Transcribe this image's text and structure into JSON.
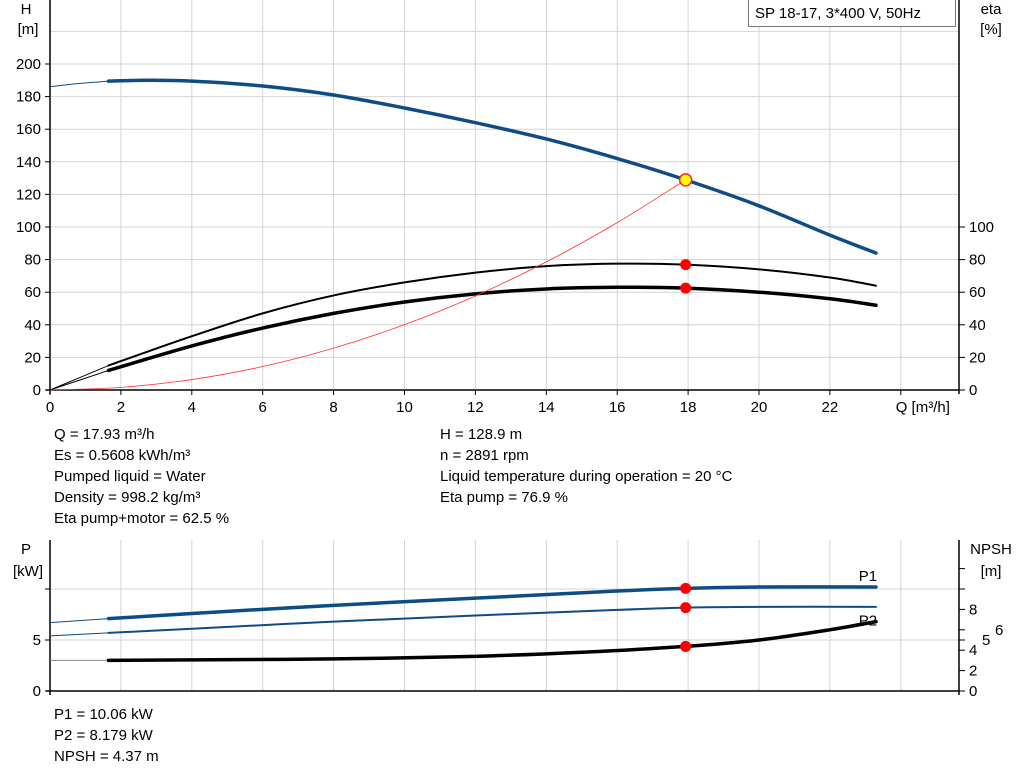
{
  "title_box": "SP 18-17, 3*400 V, 50Hz",
  "colors": {
    "head": "#0e4c86",
    "efficiency": "#000000",
    "system_curve": "#ff3030",
    "duty_point": "#ff0000",
    "duty_point_head_fill": "#ffff00",
    "grid": "#d4d4d4"
  },
  "chart_data": [
    {
      "type": "line",
      "xlabel": "Q [m³/h]",
      "ylabel": "H\n[m]",
      "ylabel_parts": [
        "H",
        "[m]"
      ],
      "y2label_parts": [
        "eta",
        "[%]"
      ],
      "xlim": [
        0,
        24
      ],
      "ylim": [
        0,
        220
      ],
      "y2lim": [
        0,
        220
      ],
      "xticks": [
        "0",
        "2",
        "4",
        "6",
        "8",
        "10",
        "12",
        "14",
        "16",
        "18",
        "20",
        "22"
      ],
      "yticks": [
        "0",
        "20",
        "40",
        "60",
        "80",
        "100",
        "120",
        "140",
        "160",
        "180",
        "200"
      ],
      "y2ticks": [
        "0",
        "20",
        "40",
        "60",
        "80",
        "100"
      ],
      "grid": true,
      "series": [
        {
          "key": "H",
          "axis": "left",
          "color": "#0e4c86",
          "width": 3.5,
          "x": [
            1.65,
            2.7,
            4,
            6,
            8,
            10,
            12,
            14,
            16,
            17.93,
            20,
            22,
            23.3
          ],
          "y": [
            189.5,
            190,
            189.5,
            186.5,
            181,
            173,
            164,
            154,
            142,
            128.9,
            113,
            95,
            84
          ],
          "ext_x": [
            0,
            0.8,
            1.65
          ],
          "ext_y": [
            186,
            188,
            189.5
          ]
        },
        {
          "key": "eta_pump",
          "axis": "right",
          "color": "#000",
          "width": 2,
          "x": [
            1.65,
            4,
            6,
            8,
            10,
            12,
            14,
            16,
            17.93,
            20,
            22,
            23.3
          ],
          "y": [
            15,
            33,
            47,
            58,
            66,
            72,
            76,
            77.5,
            76.9,
            74,
            69,
            64
          ],
          "ext_x": [
            0,
            1.65
          ],
          "ext_y": [
            0,
            15
          ]
        },
        {
          "key": "eta_pump_motor",
          "axis": "right",
          "color": "#000",
          "width": 3.5,
          "x": [
            1.65,
            4,
            6,
            8,
            10,
            12,
            14,
            16,
            17.93,
            20,
            22,
            23.3
          ],
          "y": [
            12,
            27,
            38,
            47,
            54,
            59,
            62,
            63,
            62.5,
            60,
            56,
            52
          ],
          "ext_x": [
            0,
            1.65
          ],
          "ext_y": [
            0,
            12
          ]
        },
        {
          "key": "system",
          "axis": "left",
          "color": "#ff3030",
          "width": 0.8,
          "x": [
            0,
            2,
            4,
            6,
            8,
            10,
            12,
            14,
            16,
            17.93
          ],
          "y": [
            0,
            1.6,
            6.4,
            14.4,
            25.7,
            40.1,
            57.7,
            78.6,
            102.7,
            128.9
          ]
        }
      ],
      "duty_points": [
        {
          "x": 17.93,
          "y": 128.9,
          "axis": "left",
          "fill": "#ffff00"
        },
        {
          "x": 17.93,
          "y": 76.9,
          "axis": "right",
          "fill": "#ff0000"
        },
        {
          "x": 17.93,
          "y": 62.5,
          "axis": "right",
          "fill": "#ff0000"
        }
      ]
    },
    {
      "type": "line",
      "ylabel_parts": [
        "P",
        "[kW]"
      ],
      "y2label_parts": [
        "NPSH",
        "[m]"
      ],
      "xlim": [
        0,
        24
      ],
      "ylim": [
        0,
        15
      ],
      "y2lim": [
        0,
        15
      ],
      "yticks": [
        "0",
        "5"
      ],
      "yticks_unlabeled": [
        10
      ],
      "y2ticks": [
        "0",
        "2",
        "4",
        "5",
        "6",
        "8"
      ],
      "y2ticks_unlabeled": [
        10,
        12
      ],
      "grid": true,
      "series": [
        {
          "key": "P1",
          "name": "P1",
          "color": "#0e4c86",
          "width": 3.5,
          "x": [
            1.65,
            4,
            8,
            12,
            16,
            17.93,
            20,
            23.3
          ],
          "y": [
            7.1,
            7.6,
            8.4,
            9.1,
            9.8,
            10.06,
            10.2,
            10.2
          ],
          "ext_x": [
            0,
            1.65
          ],
          "ext_y": [
            6.7,
            7.1
          ]
        },
        {
          "key": "P2",
          "name": "P2",
          "color": "#0e4c86",
          "width": 2,
          "x": [
            1.65,
            4,
            8,
            12,
            16,
            17.93,
            20,
            23.3
          ],
          "y": [
            5.7,
            6.1,
            6.8,
            7.4,
            7.95,
            8.179,
            8.25,
            8.25
          ],
          "ext_x": [
            0,
            1.65
          ],
          "ext_y": [
            5.4,
            5.7
          ]
        },
        {
          "key": "NPSH",
          "color": "#000",
          "width": 3.5,
          "x": [
            1.65,
            4,
            8,
            12,
            15,
            17.93,
            20,
            22,
            23.3
          ],
          "y": [
            3.0,
            3.05,
            3.15,
            3.4,
            3.8,
            4.37,
            5.0,
            6.0,
            6.8
          ],
          "ext_x": [
            0,
            1.65
          ],
          "ext_y": [
            3.0,
            3.0
          ]
        }
      ],
      "duty_points": [
        {
          "x": 17.93,
          "y": 10.06,
          "fill": "#ff0000"
        },
        {
          "x": 17.93,
          "y": 8.179,
          "fill": "#ff0000"
        },
        {
          "x": 17.93,
          "y": 4.37,
          "fill": "#ff0000"
        }
      ]
    }
  ],
  "info_left": [
    "Q = 17.93 m³/h",
    "Es = 0.5608 kWh/m³",
    "Pumped liquid = Water",
    "Density = 998.2 kg/m³",
    "Eta pump+motor = 62.5 %"
  ],
  "info_right": [
    "H = 128.9 m",
    "n = 2891 rpm",
    "Liquid temperature during operation = 20 °C",
    "Eta pump = 76.9 %"
  ],
  "info_bottom": [
    "P1 = 10.06 kW",
    "P2 = 8.179 kW",
    "NPSH = 4.37 m"
  ]
}
